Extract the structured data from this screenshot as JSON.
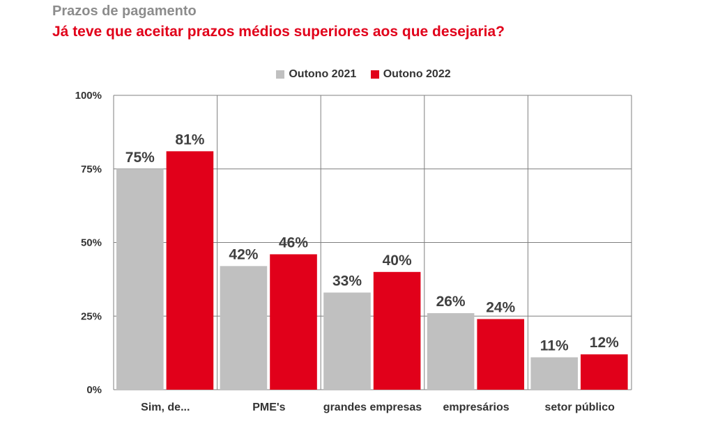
{
  "header": {
    "title": "Prazos de pagamento",
    "subtitle": "Já teve que aceitar prazos médios superiores aos que desejaria?"
  },
  "colors": {
    "series_2021": "#c0c0c0",
    "series_2022": "#e1001a",
    "grid": "#7f7f7f",
    "label": "#404040"
  },
  "chart_data": {
    "type": "bar",
    "title": "Já teve que aceitar prazos médios superiores aos que desejaria?",
    "categories": [
      "Sim, de...",
      "PME's",
      "grandes empresas",
      "empresários",
      "setor público"
    ],
    "series": [
      {
        "name": "Outono 2021",
        "values": [
          75,
          42,
          33,
          26,
          11
        ],
        "labels": [
          "75%",
          "42%",
          "33%",
          "26%",
          "11%"
        ]
      },
      {
        "name": "Outono 2022",
        "values": [
          81,
          46,
          40,
          24,
          12
        ],
        "labels": [
          "81%",
          "46%",
          "40%",
          "24%",
          "12%"
        ]
      }
    ],
    "yticks": [
      "0%",
      "25%",
      "50%",
      "75%",
      "100%"
    ],
    "ylim": [
      0,
      100
    ],
    "xlabel": "",
    "ylabel": "",
    "grid": true,
    "legend_position": "top-center"
  }
}
